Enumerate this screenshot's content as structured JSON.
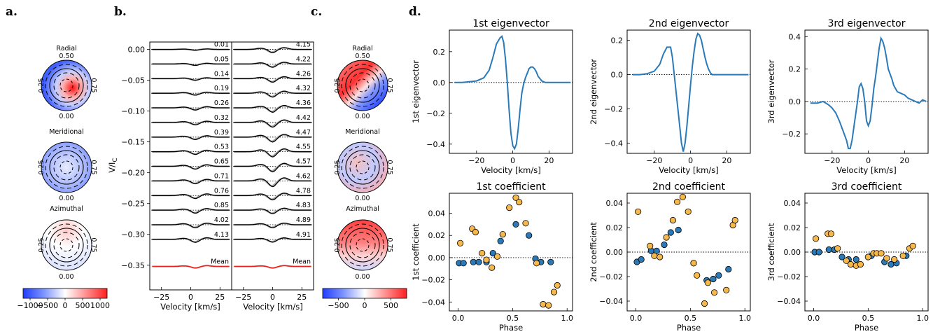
{
  "panel_labels": {
    "a": "a.",
    "b": "b.",
    "c": "c.",
    "d": "d."
  },
  "colors": {
    "blue": "#2a7ab9",
    "orange": "#f7b84b",
    "red": "#e8201c",
    "black": "#000000",
    "gray": "#a0a0a0"
  },
  "chart_data": [
    {
      "id": "a",
      "type": "heatmap",
      "maps": [
        {
          "title": "Radial",
          "phase_labels": [
            "0.50",
            "0.25",
            "0.75",
            "0.00"
          ],
          "pattern": "central-red"
        },
        {
          "title": "Meridional",
          "phase_labels": [
            "0.50",
            "0.25",
            "0.75",
            "0.00"
          ],
          "pattern": "weak-blue"
        },
        {
          "title": "Azimuthal",
          "phase_labels": [
            "0.50",
            "0.25",
            "0.75",
            "0.00"
          ],
          "pattern": "weak-mixed"
        }
      ],
      "colorbar": {
        "min": -1200,
        "max": 1200,
        "tick_values": [
          -1000,
          -500,
          0,
          500,
          1000
        ],
        "tick_labels": [
          "−1000",
          "−500",
          "0",
          "500",
          "1000"
        ]
      }
    },
    {
      "id": "b",
      "type": "line",
      "ylabel": "V/I",
      "ylabel_sub": "C",
      "xlabel": "Velocity [km/s]",
      "xlim": [
        -35,
        35
      ],
      "ylim": [
        -0.39,
        0.012
      ],
      "xticks": [
        -25,
        0,
        25
      ],
      "xtick_labels": [
        "−25",
        "0",
        "25"
      ],
      "yticks": [
        0.0,
        -0.05,
        -0.1,
        -0.15,
        -0.2,
        -0.25,
        -0.3,
        -0.35
      ],
      "ytick_labels": [
        "0.00",
        "−0.05",
        "−0.10",
        "−0.15",
        "−0.20",
        "−0.25",
        "−0.30",
        "−0.35"
      ],
      "offset_step": -0.0237,
      "left_phases": [
        "0.01",
        "0.05",
        "0.14",
        "0.19",
        "0.26",
        "0.32",
        "0.39",
        "0.53",
        "0.65",
        "0.71",
        "0.76",
        "0.85",
        "4.02",
        "4.13"
      ],
      "right_phases": [
        "4.15",
        "4.22",
        "4.26",
        "4.32",
        "4.36",
        "4.42",
        "4.47",
        "4.55",
        "4.57",
        "4.62",
        "4.78",
        "4.83",
        "4.89",
        "4.91"
      ],
      "left_amplitudes": [
        0.3,
        0.5,
        0.6,
        0.7,
        0.8,
        0.85,
        0.9,
        1.0,
        1.05,
        1.05,
        1.1,
        1.1,
        1.1,
        1.1
      ],
      "right_amplitudes": [
        1.2,
        1.2,
        1.3,
        1.4,
        1.6,
        1.7,
        1.8,
        1.9,
        2.0,
        2.1,
        1.6,
        1.3,
        1.1,
        1.0
      ],
      "mean_label": "Mean",
      "mean_offset": -0.352
    },
    {
      "id": "c",
      "type": "heatmap",
      "maps": [
        {
          "title": "Radial",
          "phase_labels": [
            "0.50",
            "0.25",
            "0.75",
            "0.00"
          ],
          "pattern": "red-blue-diag"
        },
        {
          "title": "Meridional",
          "phase_labels": [
            "0.50",
            "0.25",
            "0.75",
            "0.00"
          ],
          "pattern": "mixed"
        },
        {
          "title": "Azimuthal",
          "phase_labels": [
            "0.50",
            "0.25",
            "0.75",
            "0.00"
          ],
          "pattern": "red-band"
        }
      ],
      "colorbar": {
        "min": -800,
        "max": 800,
        "tick_values": [
          -500,
          0,
          500
        ],
        "tick_labels": [
          "−500",
          "0",
          "500"
        ]
      }
    },
    {
      "id": "d-ev1",
      "type": "line",
      "title": "1st eigenvector",
      "ylabel": "1st eigenvector",
      "xlabel": "Velocity [km/s]",
      "xlim": [
        -35,
        33
      ],
      "ylim": [
        -0.46,
        0.34
      ],
      "xticks": [
        -20,
        0,
        20
      ],
      "xtick_labels": [
        "−20",
        "0",
        "20"
      ],
      "yticks": [
        0.2,
        0.0,
        -0.2,
        -0.4
      ],
      "ytick_labels": [
        "0.2",
        "0.0",
        "−0.2",
        "−0.4"
      ],
      "x": [
        -32,
        -28,
        -24,
        -20,
        -16,
        -13,
        -11,
        -9,
        -7,
        -6,
        -5,
        -4,
        -3,
        -2,
        -1,
        0,
        1,
        2,
        3,
        4,
        5,
        6,
        7,
        8,
        9,
        10,
        11,
        12,
        13,
        14,
        16,
        18,
        20,
        24,
        28,
        32
      ],
      "y": [
        0.0,
        0.0,
        0.005,
        0.01,
        0.03,
        0.08,
        0.16,
        0.25,
        0.29,
        0.3,
        0.26,
        0.15,
        0.0,
        -0.18,
        -0.33,
        -0.41,
        -0.43,
        -0.4,
        -0.3,
        -0.18,
        -0.07,
        -0.01,
        0.03,
        0.06,
        0.09,
        0.1,
        0.1,
        0.09,
        0.07,
        0.04,
        0.01,
        0.0,
        0.0,
        0.0,
        0.0,
        0.0
      ]
    },
    {
      "id": "d-ev2",
      "type": "line",
      "title": "2nd eigenvector",
      "ylabel": "2nd eigenvector",
      "xlabel": "Velocity [km/s]",
      "xlim": [
        -35,
        33
      ],
      "ylim": [
        -0.46,
        0.26
      ],
      "xticks": [
        -20,
        0,
        20
      ],
      "xtick_labels": [
        "−20",
        "0",
        "20"
      ],
      "yticks": [
        0.2,
        0.0,
        -0.2,
        -0.4
      ],
      "ytick_labels": [
        "0.2",
        "0.0",
        "−0.2",
        "−0.4"
      ],
      "x": [
        -32,
        -28,
        -24,
        -20,
        -17,
        -15,
        -13,
        -11,
        -10,
        -9,
        -8,
        -7,
        -6,
        -5,
        -4,
        -3,
        -2,
        -1,
        0,
        1,
        2,
        3,
        4,
        5,
        6,
        7,
        8,
        9,
        10,
        11,
        12,
        14,
        16,
        18,
        20,
        24,
        28,
        32
      ],
      "y": [
        0.0,
        0.0,
        0.005,
        0.02,
        0.06,
        0.12,
        0.16,
        0.16,
        0.1,
        0.0,
        -0.1,
        -0.2,
        -0.3,
        -0.4,
        -0.45,
        -0.4,
        -0.3,
        -0.18,
        -0.06,
        0.05,
        0.14,
        0.21,
        0.24,
        0.23,
        0.2,
        0.15,
        0.1,
        0.06,
        0.03,
        0.01,
        0.0,
        0.0,
        0.0,
        0.0,
        0.0,
        0.0,
        0.0,
        0.0
      ]
    },
    {
      "id": "d-ev3",
      "type": "line",
      "title": "3rd eigenvector",
      "ylabel": "3rd eigenvector",
      "xlabel": "Velocity [km/s]",
      "xlim": [
        -35,
        33
      ],
      "ylim": [
        -0.32,
        0.44
      ],
      "xticks": [
        -20,
        0,
        20
      ],
      "xtick_labels": [
        "−20",
        "0",
        "20"
      ],
      "yticks": [
        0.4,
        0.2,
        0.0,
        -0.2
      ],
      "ytick_labels": [
        "0.4",
        "0.2",
        "0.0",
        "−0.2"
      ],
      "x": [
        -32,
        -28,
        -25,
        -22,
        -20,
        -18,
        -16,
        -14,
        -12,
        -11,
        -10,
        -9,
        -8,
        -7,
        -6,
        -5,
        -4,
        -3,
        -2,
        -1,
        0,
        1,
        2,
        3,
        4,
        5,
        6,
        7,
        8,
        9,
        10,
        11,
        12,
        13,
        14,
        15,
        16,
        18,
        20,
        22,
        24,
        26,
        28,
        30,
        32
      ],
      "y": [
        -0.01,
        -0.01,
        0.0,
        -0.02,
        -0.04,
        -0.07,
        -0.12,
        -0.18,
        -0.24,
        -0.29,
        -0.29,
        -0.24,
        -0.16,
        -0.08,
        0.0,
        0.09,
        0.11,
        0.08,
        0.0,
        -0.12,
        -0.15,
        -0.12,
        -0.03,
        0.08,
        0.15,
        0.24,
        0.33,
        0.39,
        0.37,
        0.33,
        0.27,
        0.2,
        0.17,
        0.14,
        0.1,
        0.08,
        0.06,
        0.05,
        0.04,
        0.02,
        0.01,
        0.0,
        -0.01,
        0.01,
        0.0
      ]
    },
    {
      "id": "d-c1",
      "type": "scatter",
      "title": "1st coefficient",
      "ylabel": "1st coefficient",
      "xlabel": "Phase",
      "xlim": [
        -0.08,
        1.05
      ],
      "ylim": [
        -0.048,
        0.058
      ],
      "xticks": [
        0.0,
        0.5,
        1.0
      ],
      "xtick_labels": [
        "0.0",
        "0.5",
        "1.0"
      ],
      "yticks": [
        0.04,
        0.02,
        0.0,
        -0.02,
        -0.04
      ],
      "ytick_labels": [
        "0.04",
        "0.02",
        "0.00",
        "−0.02",
        "−0.04"
      ],
      "series": [
        {
          "color": "#2a7ab9",
          "x": [
            0.01,
            0.05,
            0.14,
            0.19,
            0.26,
            0.32,
            0.39,
            0.53,
            0.65,
            0.71,
            0.76,
            0.85
          ],
          "y": [
            -0.005,
            -0.005,
            -0.004,
            -0.004,
            -0.004,
            0.004,
            0.015,
            0.03,
            0.02,
            -0.001,
            -0.004,
            -0.004
          ]
        },
        {
          "color": "#f7b84b",
          "x": [
            0.02,
            0.13,
            0.16,
            0.22,
            0.26,
            0.31,
            0.36,
            0.41,
            0.47,
            0.53,
            0.56,
            0.62,
            0.72,
            0.78,
            0.83,
            0.88,
            0.91
          ],
          "y": [
            0.013,
            0.026,
            0.023,
            0.004,
            -0.002,
            -0.009,
            0.001,
            0.021,
            0.045,
            0.054,
            0.05,
            0.031,
            -0.005,
            -0.042,
            -0.043,
            -0.031,
            -0.025
          ]
        }
      ]
    },
    {
      "id": "d-c2",
      "type": "scatter",
      "title": "2nd coefficient",
      "ylabel": "2nd coefficient",
      "xlabel": "Phase",
      "xlim": [
        -0.08,
        1.05
      ],
      "ylim": [
        -0.048,
        0.048
      ],
      "xticks": [
        0.0,
        0.5,
        1.0
      ],
      "xtick_labels": [
        "0.0",
        "0.5",
        "1.0"
      ],
      "yticks": [
        0.04,
        0.02,
        0.0,
        -0.02,
        -0.04
      ],
      "ytick_labels": [
        "0.04",
        "0.02",
        "0.00",
        "−0.02",
        "−0.04"
      ],
      "series": [
        {
          "color": "#2a7ab9",
          "x": [
            0.01,
            0.05,
            0.14,
            0.19,
            0.26,
            0.32,
            0.39,
            0.53,
            0.65,
            0.71,
            0.76,
            0.85
          ],
          "y": [
            -0.008,
            -0.006,
            0.001,
            0.001,
            0.006,
            0.016,
            0.018,
            -0.009,
            -0.023,
            -0.022,
            -0.019,
            -0.014
          ]
        },
        {
          "color": "#f7b84b",
          "x": [
            0.02,
            0.13,
            0.17,
            0.22,
            0.28,
            0.34,
            0.38,
            0.43,
            0.48,
            0.53,
            0.56,
            0.63,
            0.66,
            0.72,
            0.83,
            0.89,
            0.91
          ],
          "y": [
            0.033,
            0.005,
            -0.003,
            -0.004,
            0.012,
            0.026,
            0.041,
            0.045,
            0.033,
            -0.009,
            -0.019,
            -0.042,
            -0.025,
            -0.033,
            -0.031,
            0.022,
            0.026
          ]
        }
      ]
    },
    {
      "id": "d-c3",
      "type": "scatter",
      "title": "3rd coefficient",
      "ylabel": "3rd coefficient",
      "xlabel": "Phase",
      "xlim": [
        -0.08,
        1.05
      ],
      "ylim": [
        -0.048,
        0.048
      ],
      "xticks": [
        0.0,
        0.5,
        1.0
      ],
      "xtick_labels": [
        "0.0",
        "0.5",
        "1.0"
      ],
      "yticks": [
        0.04,
        0.02,
        0.0,
        -0.02,
        -0.04
      ],
      "ytick_labels": [
        "0.04",
        "0.02",
        "0.00",
        "−0.02",
        "−0.04"
      ],
      "series": [
        {
          "color": "#2a7ab9",
          "x": [
            0.01,
            0.05,
            0.14,
            0.19,
            0.26,
            0.32,
            0.39,
            0.53,
            0.65,
            0.71,
            0.76,
            0.85
          ],
          "y": [
            0.0,
            0.0,
            0.002,
            0.002,
            -0.004,
            -0.006,
            -0.006,
            -0.003,
            -0.008,
            -0.01,
            -0.009,
            -0.003
          ]
        },
        {
          "color": "#f7b84b",
          "x": [
            0.02,
            0.13,
            0.16,
            0.22,
            0.3,
            0.34,
            0.39,
            0.43,
            0.5,
            0.55,
            0.58,
            0.62,
            0.67,
            0.74,
            0.82,
            0.88,
            0.91
          ],
          "y": [
            0.011,
            0.015,
            0.015,
            0.003,
            -0.007,
            -0.01,
            -0.011,
            -0.01,
            -0.004,
            -0.001,
            -0.001,
            -0.001,
            -0.005,
            -0.006,
            -0.003,
            0.003,
            0.005
          ]
        }
      ]
    }
  ]
}
